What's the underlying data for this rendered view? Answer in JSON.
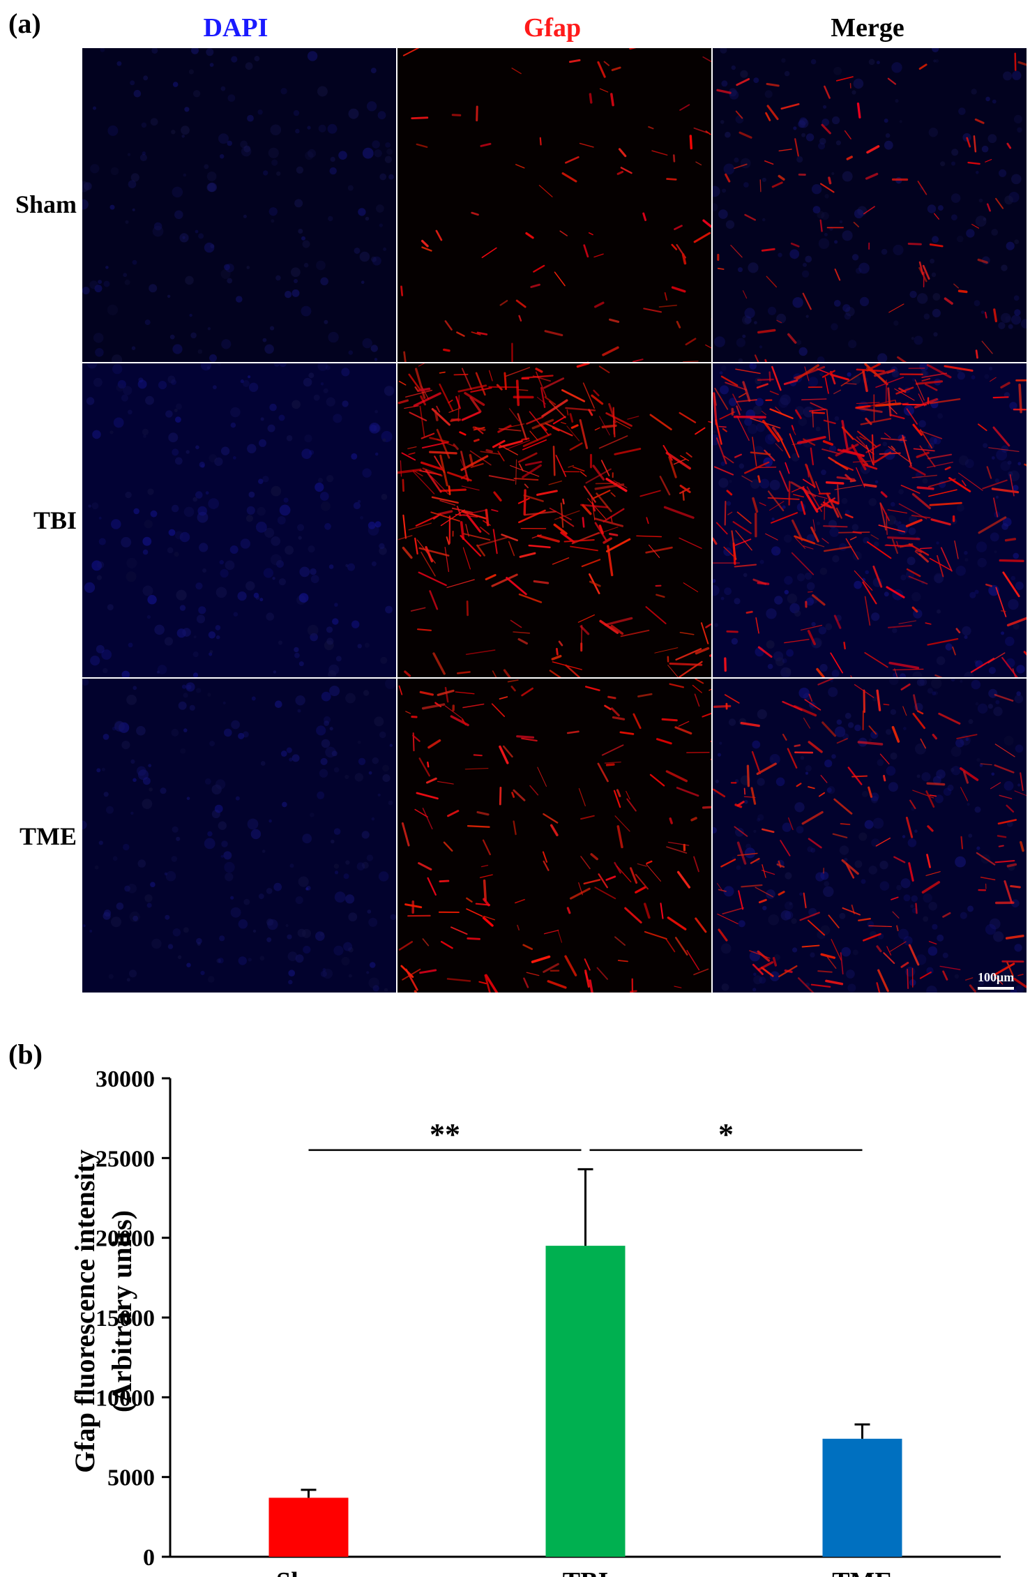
{
  "panel_a": {
    "label": "(a)",
    "columns": [
      {
        "label": "DAPI",
        "color": "#1a1aff"
      },
      {
        "label": "Gfap",
        "color": "#ff1a1a"
      },
      {
        "label": "Merge",
        "color": "#000000"
      }
    ],
    "rows": [
      {
        "label": "Sham",
        "gfap_density": 0.25,
        "dapi_brightness": 0.12
      },
      {
        "label": "TBI",
        "gfap_density": 1.0,
        "dapi_brightness": 0.35
      },
      {
        "label": "TME",
        "gfap_density": 0.55,
        "dapi_brightness": 0.28
      }
    ],
    "scale_bar": "100μm"
  },
  "panel_b": {
    "label": "(b)"
  },
  "chart_data": {
    "type": "bar",
    "categories": [
      "Sham",
      "TBI",
      "TME"
    ],
    "values": [
      3700,
      19500,
      7400
    ],
    "errors": [
      500,
      4800,
      900
    ],
    "colors": [
      "#ff0000",
      "#00b050",
      "#0070c0"
    ],
    "ylabel_line1": "Gfap fluorescence intensity",
    "ylabel_line2": "(Arbitrary units)",
    "ylim": [
      0,
      30000
    ],
    "yticks": [
      0,
      5000,
      10000,
      15000,
      20000,
      25000,
      30000
    ],
    "significance": [
      {
        "from": "Sham",
        "to": "TBI",
        "label": "**"
      },
      {
        "from": "TBI",
        "to": "TME",
        "label": "*"
      }
    ]
  }
}
